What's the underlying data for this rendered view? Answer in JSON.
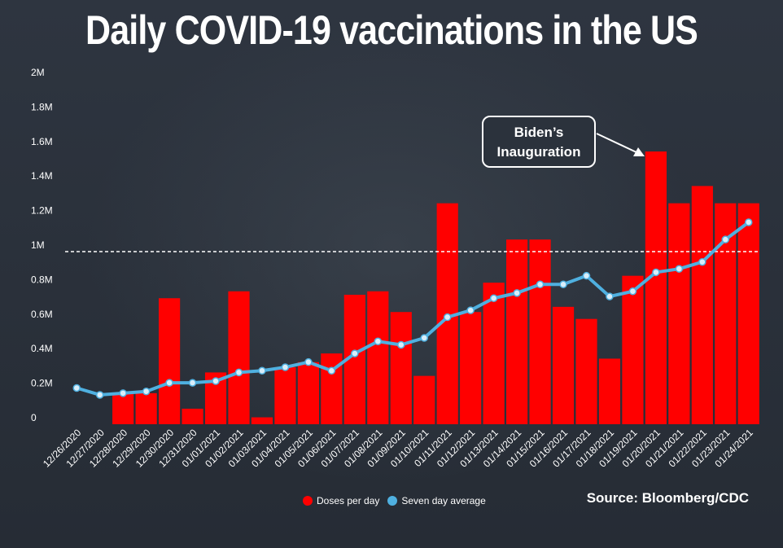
{
  "title": "Daily COVID-19 vaccinations in the US",
  "annotation": "Biden’s Inauguration",
  "source": "Source: Bloomberg/CDC",
  "colors": {
    "doses": "#ff0000",
    "average": "#4fb0e0",
    "average_marker_fill": "#d9eefa",
    "background": "#2b323c"
  },
  "chart_data": {
    "type": "bar",
    "title": "Daily COVID-19 vaccinations in the US",
    "xlabel": "",
    "ylabel": "",
    "ylim": [
      0,
      2000000
    ],
    "yticks": [
      {
        "value": 0,
        "label": "0"
      },
      {
        "value": 200000,
        "label": "0.2M"
      },
      {
        "value": 400000,
        "label": "0.4M"
      },
      {
        "value": 600000,
        "label": "0.6M"
      },
      {
        "value": 800000,
        "label": "0.8M"
      },
      {
        "value": 1000000,
        "label": "1M"
      },
      {
        "value": 1200000,
        "label": "1.2M"
      },
      {
        "value": 1400000,
        "label": "1.4M"
      },
      {
        "value": 1600000,
        "label": "1.6M"
      },
      {
        "value": 1800000,
        "label": "1.8M"
      },
      {
        "value": 2000000,
        "label": "2M"
      }
    ],
    "reference_line": 1000000,
    "categories": [
      "12/26/2020",
      "12/27/2020",
      "12/28/2020",
      "12/29/2020",
      "12/30/2020",
      "12/31/2020",
      "01/01/2021",
      "01/02/2021",
      "01/03/2021",
      "01/04/2021",
      "01/05/2021",
      "01/06/2021",
      "01/07/2021",
      "01/08/2021",
      "01/09/2021",
      "01/10/2021",
      "01/11/2021",
      "01/12/2021",
      "01/13/2021",
      "01/14/2021",
      "01/15/2021",
      "01/16/2021",
      "01/17/2021",
      "01/18/2021",
      "01/19/2021",
      "01/20/2021",
      "01/21/2021",
      "01/22/2021",
      "01/23/2021",
      "01/24/2021"
    ],
    "series": [
      {
        "name": "Doses per day",
        "type": "bar",
        "values": [
          0,
          0,
          180000,
          180000,
          730000,
          90000,
          300000,
          770000,
          40000,
          330000,
          360000,
          410000,
          750000,
          770000,
          650000,
          280000,
          1280000,
          650000,
          820000,
          1070000,
          1070000,
          680000,
          610000,
          380000,
          860000,
          1580000,
          1280000,
          1380000,
          1280000,
          1280000
        ]
      },
      {
        "name": "Seven day average",
        "type": "line",
        "values": [
          210000,
          170000,
          180000,
          190000,
          240000,
          240000,
          250000,
          300000,
          310000,
          330000,
          360000,
          310000,
          410000,
          480000,
          460000,
          500000,
          620000,
          660000,
          730000,
          760000,
          810000,
          810000,
          860000,
          740000,
          770000,
          880000,
          900000,
          940000,
          1070000,
          1170000
        ]
      }
    ],
    "legend": {
      "placement": "bottom"
    },
    "grid": false
  }
}
